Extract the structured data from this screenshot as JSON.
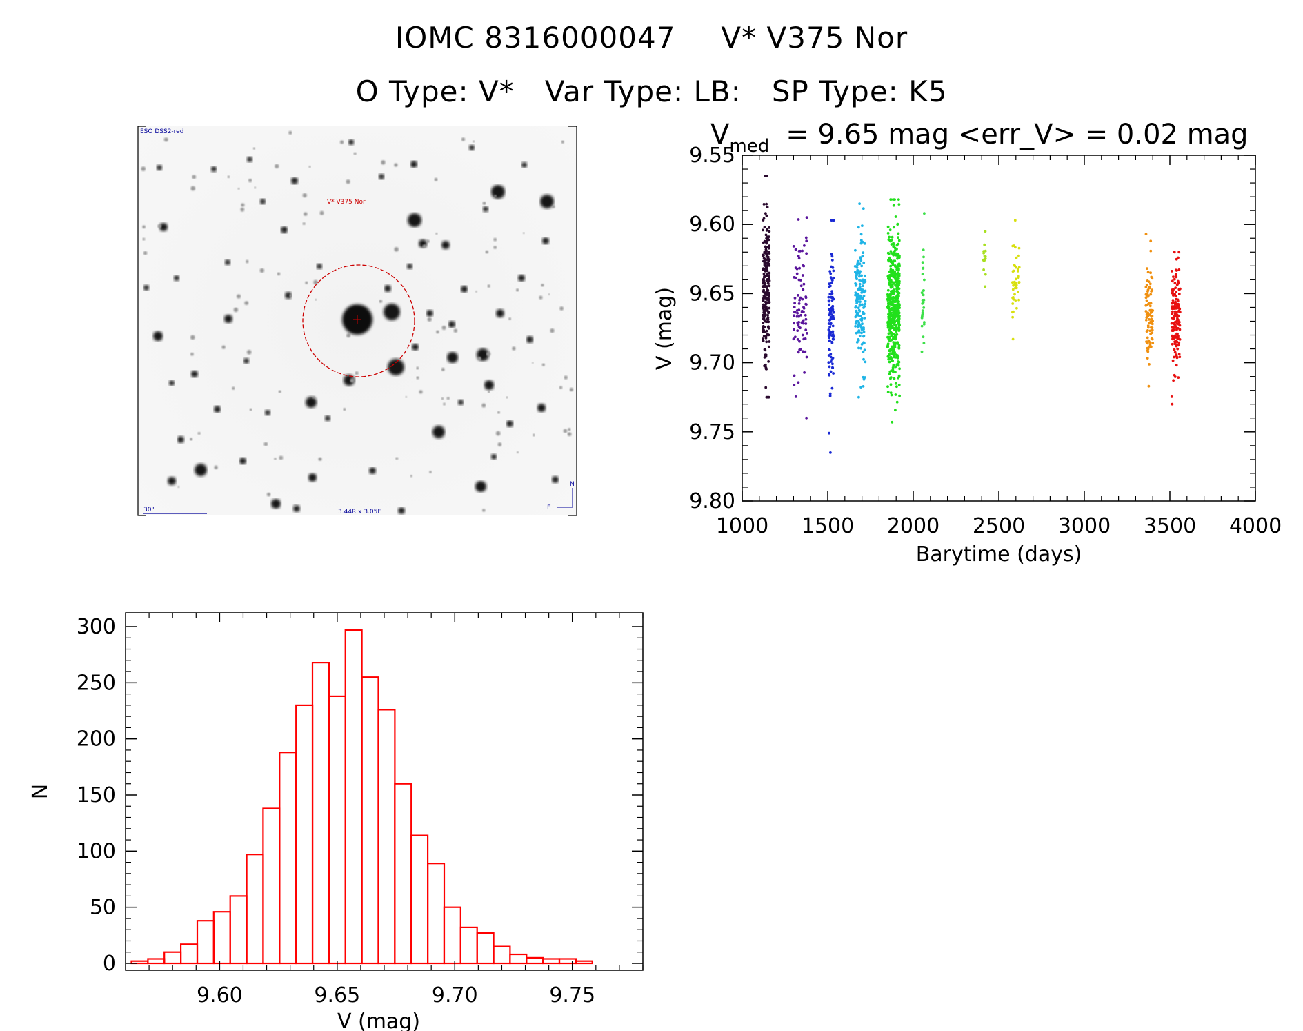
{
  "title": {
    "line1_id": "IOMC 8316000047",
    "line1_name": "V* V375 Nor",
    "obj_type": "O Type: V*",
    "var_type": "Var Type: LB:",
    "sp_type": "SP Type: K5"
  },
  "finder": {
    "survey": "ESO DSS2-red",
    "target_label": "V* V375 Nor",
    "scale_label": "30\"",
    "fov_label": "3.44R x 3.05F",
    "north_label": "N",
    "east_label": "E",
    "colors": {
      "target": "#cc0000",
      "annotation": "#000099"
    }
  },
  "chart_data": [
    {
      "type": "scatter",
      "title_main": "V",
      "title_sub": "med",
      "title_rest": "= 9.65 mag <err_V> = 0.02 mag",
      "xlabel": "Barytime (days)",
      "ylabel": "V (mag)",
      "xlim": [
        1000,
        4000
      ],
      "ylim": [
        9.8,
        9.55
      ],
      "y_inverted": true,
      "xticks": [
        "1000",
        "1500",
        "2000",
        "2500",
        "3000",
        "3500",
        "4000"
      ],
      "yticks": [
        "9.55",
        "9.60",
        "9.65",
        "9.70",
        "9.75",
        "9.80"
      ],
      "seasons": [
        {
          "x_range": [
            1120,
            1160
          ],
          "y_range": [
            9.565,
            9.725
          ],
          "center": 9.65,
          "n": 240,
          "color": "#2a0a2e"
        },
        {
          "x_range": [
            1300,
            1380
          ],
          "y_range": [
            9.595,
            9.74
          ],
          "center": 9.66,
          "n": 90,
          "color": "#5a159c"
        },
        {
          "x_range": [
            1505,
            1535
          ],
          "y_range": [
            9.597,
            9.765
          ],
          "center": 9.665,
          "n": 110,
          "color": "#1a2ad4"
        },
        {
          "x_range": [
            1660,
            1720
          ],
          "y_range": [
            9.585,
            9.725
          ],
          "center": 9.655,
          "n": 160,
          "color": "#1fb4e6"
        },
        {
          "x_range": [
            1850,
            1920
          ],
          "y_range": [
            9.582,
            9.743
          ],
          "center": 9.66,
          "n": 520,
          "color": "#22e01c"
        },
        {
          "x_range": [
            2050,
            2065
          ],
          "y_range": [
            9.592,
            9.692
          ],
          "center": 9.65,
          "n": 30,
          "color": "#3ee04a"
        },
        {
          "x_range": [
            2410,
            2425
          ],
          "y_range": [
            9.605,
            9.645
          ],
          "center": 9.625,
          "n": 15,
          "color": "#a8e020"
        },
        {
          "x_range": [
            2580,
            2620
          ],
          "y_range": [
            9.597,
            9.683
          ],
          "center": 9.64,
          "n": 45,
          "color": "#d8e010"
        },
        {
          "x_range": [
            3360,
            3400
          ],
          "y_range": [
            9.607,
            9.717
          ],
          "center": 9.66,
          "n": 90,
          "color": "#f09010"
        },
        {
          "x_range": [
            3510,
            3560
          ],
          "y_range": [
            9.62,
            9.73
          ],
          "center": 9.665,
          "n": 150,
          "color": "#e81010"
        }
      ]
    },
    {
      "type": "bar",
      "histogram": true,
      "xlabel": "V (mag)",
      "ylabel": "N",
      "xlim": [
        9.56,
        9.78
      ],
      "ylim": [
        0,
        300
      ],
      "xticks": [
        "9.60",
        "9.65",
        "9.70",
        "9.75"
      ],
      "yticks": [
        "0",
        "50",
        "100",
        "150",
        "200",
        "250",
        "300"
      ],
      "bin_start": 9.5625,
      "bin_width": 0.007,
      "counts": [
        2,
        4,
        10,
        17,
        38,
        46,
        60,
        97,
        138,
        188,
        230,
        268,
        238,
        297,
        255,
        226,
        160,
        114,
        89,
        50,
        32,
        27,
        15,
        8,
        5,
        4,
        4,
        2
      ],
      "color": "#ff0000"
    }
  ]
}
